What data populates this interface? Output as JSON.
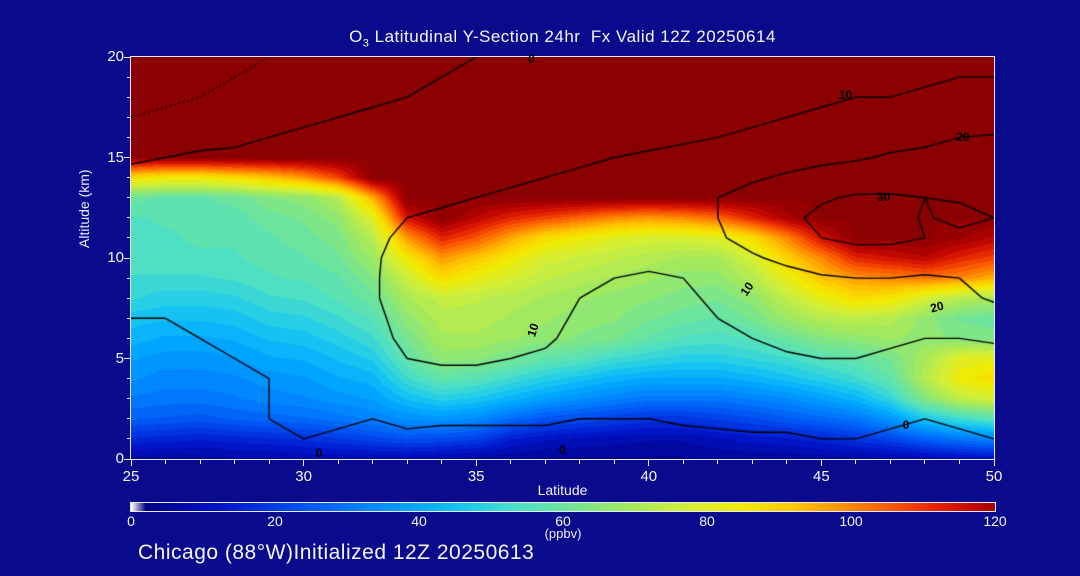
{
  "title": {
    "prefix": "O",
    "subscript": "3",
    "rest": " Latitudinal Y-Section 24hr  Fx Valid 12Z 20250614"
  },
  "footer": "Chicago (88°W)Initialized 12Z 20250613",
  "axes": {
    "x": {
      "label": "Latitude",
      "min": 25,
      "max": 50,
      "major_ticks": [
        25,
        30,
        35,
        40,
        45,
        50
      ],
      "minor_step": 1
    },
    "y": {
      "label": "Altitude (km)",
      "min": 0,
      "max": 20,
      "major_ticks": [
        0,
        5,
        10,
        15,
        20
      ],
      "minor_step": 1
    }
  },
  "colorbar": {
    "min": 0,
    "max": 120,
    "ticks": [
      0,
      20,
      40,
      60,
      80,
      100,
      120
    ],
    "units": "(ppbv)"
  },
  "colors": {
    "background": "#0a0a8c",
    "text": "#f5f5f5",
    "frame": "#e9e9f2",
    "contour": "#000000"
  },
  "chart_data": {
    "type": "heatmap",
    "title": "O3 Latitudinal Y-Section 24hr Fx Valid 12Z 20250614",
    "xlabel": "Latitude",
    "ylabel": "Altitude (km)",
    "units": "ppbv",
    "x_range": [
      25,
      50
    ],
    "y_range": [
      0,
      20
    ],
    "x_step": 1,
    "y_step": 1,
    "fill_quantize_step": 3,
    "colormap": [
      [
        0,
        "#ffffff"
      ],
      [
        2,
        "#000086"
      ],
      [
        12,
        "#0014c8"
      ],
      [
        22,
        "#004af0"
      ],
      [
        32,
        "#0082ff"
      ],
      [
        40,
        "#00aaff"
      ],
      [
        47,
        "#1fccec"
      ],
      [
        54,
        "#4fe0c4"
      ],
      [
        61,
        "#72e596"
      ],
      [
        69,
        "#a2e95e"
      ],
      [
        77,
        "#d2ef38"
      ],
      [
        85,
        "#f2ea00"
      ],
      [
        92,
        "#ffc800"
      ],
      [
        99,
        "#ff9000"
      ],
      [
        106,
        "#fa5400"
      ],
      [
        112,
        "#e32000"
      ],
      [
        118,
        "#ba0300"
      ],
      [
        122,
        "#9c0000"
      ],
      [
        125,
        "#8b0000"
      ]
    ],
    "fill_grid": [
      [
        6,
        6,
        6,
        7,
        7,
        8,
        8,
        8,
        8,
        7,
        6,
        5,
        4,
        4,
        4,
        4,
        4,
        5,
        5,
        5,
        6,
        6,
        7,
        8,
        9,
        10
      ],
      [
        16,
        15,
        14,
        15,
        16,
        17,
        19,
        21,
        23,
        22,
        20,
        14,
        11,
        10,
        9,
        8,
        8,
        10,
        12,
        13,
        15,
        18,
        21,
        26,
        30,
        33
      ],
      [
        26,
        25,
        24,
        26,
        27,
        28,
        30,
        32,
        35,
        36,
        34,
        28,
        24,
        22,
        20,
        18,
        18,
        20,
        22,
        25,
        27,
        30,
        36,
        46,
        52,
        56
      ],
      [
        31,
        30,
        30,
        31,
        33,
        34,
        36,
        38,
        44,
        48,
        46,
        42,
        38,
        35,
        32,
        30,
        30,
        30,
        32,
        34,
        38,
        42,
        50,
        64,
        74,
        78
      ],
      [
        35,
        33,
        33,
        34,
        36,
        37,
        40,
        42,
        52,
        58,
        56,
        52,
        48,
        45,
        42,
        40,
        40,
        40,
        42,
        45,
        48,
        52,
        58,
        72,
        84,
        88
      ],
      [
        38,
        36,
        36,
        37,
        40,
        41,
        44,
        47,
        58,
        66,
        65,
        62,
        58,
        56,
        52,
        50,
        48,
        48,
        50,
        52,
        56,
        58,
        62,
        70,
        80,
        82
      ],
      [
        42,
        40,
        40,
        41,
        44,
        45,
        48,
        52,
        62,
        70,
        70,
        68,
        66,
        64,
        62,
        58,
        55,
        54,
        56,
        60,
        64,
        66,
        68,
        66,
        64,
        63
      ],
      [
        45,
        44,
        44,
        45,
        48,
        49,
        52,
        56,
        66,
        72,
        72,
        70,
        68,
        66,
        65,
        62,
        60,
        58,
        62,
        68,
        72,
        74,
        72,
        66,
        61,
        60
      ],
      [
        50,
        48,
        48,
        49,
        52,
        53,
        56,
        60,
        70,
        75,
        74,
        72,
        70,
        68,
        66,
        65,
        63,
        62,
        66,
        74,
        82,
        88,
        86,
        78,
        72,
        70
      ],
      [
        52,
        52,
        52,
        53,
        55,
        56,
        58,
        64,
        76,
        88,
        82,
        78,
        74,
        72,
        70,
        68,
        66,
        66,
        72,
        82,
        92,
        98,
        100,
        102,
        100,
        95
      ],
      [
        55,
        55,
        55,
        55,
        57,
        58,
        61,
        68,
        85,
        98,
        92,
        85,
        78,
        76,
        74,
        72,
        70,
        70,
        78,
        90,
        100,
        112,
        115,
        118,
        112,
        108
      ],
      [
        55,
        55,
        56,
        56,
        58,
        60,
        63,
        72,
        98,
        112,
        106,
        96,
        88,
        84,
        80,
        78,
        78,
        80,
        88,
        100,
        115,
        125,
        125,
        125,
        122,
        118
      ],
      [
        55,
        56,
        56,
        57,
        60,
        62,
        66,
        80,
        115,
        125,
        118,
        112,
        108,
        104,
        100,
        98,
        100,
        104,
        112,
        120,
        125,
        125,
        125,
        125,
        125,
        125
      ],
      [
        60,
        58,
        58,
        60,
        64,
        66,
        72,
        95,
        125,
        125,
        125,
        125,
        125,
        125,
        125,
        125,
        125,
        125,
        125,
        125,
        125,
        125,
        125,
        125,
        125,
        125
      ],
      [
        88,
        85,
        85,
        88,
        92,
        98,
        108,
        125,
        125,
        125,
        125,
        125,
        125,
        125,
        125,
        125,
        125,
        125,
        125,
        125,
        125,
        125,
        125,
        125,
        125,
        125
      ],
      [
        125,
        125,
        125,
        125,
        125,
        125,
        125,
        125,
        125,
        125,
        125,
        125,
        125,
        125,
        125,
        125,
        125,
        125,
        125,
        125,
        125,
        125,
        125,
        125,
        125,
        125
      ],
      [
        125,
        125,
        125,
        125,
        125,
        125,
        125,
        125,
        125,
        125,
        125,
        125,
        125,
        125,
        125,
        125,
        125,
        125,
        125,
        125,
        125,
        125,
        125,
        125,
        125,
        125
      ],
      [
        125,
        125,
        125,
        125,
        125,
        125,
        125,
        125,
        125,
        125,
        125,
        125,
        125,
        125,
        125,
        125,
        125,
        125,
        125,
        125,
        125,
        125,
        125,
        125,
        125,
        125
      ],
      [
        125,
        125,
        125,
        125,
        125,
        125,
        125,
        125,
        125,
        125,
        125,
        125,
        125,
        125,
        125,
        125,
        125,
        125,
        125,
        125,
        125,
        125,
        125,
        125,
        125,
        125
      ],
      [
        125,
        125,
        125,
        125,
        125,
        125,
        125,
        125,
        125,
        125,
        125,
        125,
        125,
        125,
        125,
        125,
        125,
        125,
        125,
        125,
        125,
        125,
        125,
        125,
        125,
        125
      ],
      [
        125,
        125,
        125,
        125,
        125,
        125,
        125,
        125,
        125,
        125,
        125,
        125,
        125,
        125,
        125,
        125,
        125,
        125,
        125,
        125,
        125,
        125,
        125,
        125,
        125,
        125
      ]
    ],
    "contour_levels_solid": [
      0,
      10,
      20,
      30
    ],
    "contour_levels_dotted": [
      -5
    ],
    "contour_grid": [
      [
        -3,
        -3,
        -3,
        -2,
        -2,
        -2,
        -2,
        -2,
        -3,
        -5,
        -5,
        -5,
        -5,
        -5,
        -5,
        -5,
        -5,
        -4,
        -4,
        -3,
        -2,
        -2,
        -3,
        -4,
        -3,
        -2
      ],
      [
        -2,
        -2,
        -2,
        -1,
        -1,
        0,
        -1,
        -1,
        -1,
        -2,
        -2,
        -2,
        -2,
        -2,
        -2,
        -2,
        -2,
        -1,
        -1,
        -1,
        0,
        0,
        -1,
        -2,
        -1,
        0
      ],
      [
        -2,
        -2,
        -1,
        -1,
        0,
        1,
        1,
        0,
        1,
        1,
        1,
        1,
        1,
        0,
        0,
        0,
        1,
        1,
        2,
        2,
        2,
        2,
        1,
        0,
        1,
        2
      ],
      [
        -3,
        -2,
        -2,
        -1,
        0,
        1,
        1,
        1,
        3,
        4,
        4,
        3,
        2,
        1,
        1,
        1,
        1,
        2,
        3,
        3,
        4,
        4,
        3,
        2,
        2,
        3
      ],
      [
        -2,
        -2,
        -1,
        -1,
        0,
        1,
        2,
        3,
        7,
        8,
        8,
        7,
        6,
        4,
        3,
        3,
        3,
        4,
        5,
        6,
        7,
        7,
        6,
        5,
        5,
        5
      ],
      [
        -2,
        -1,
        -1,
        0,
        1,
        2,
        3,
        5,
        10,
        11,
        11,
        10,
        9,
        7,
        5,
        4,
        5,
        6,
        8,
        9,
        10,
        10,
        9,
        8,
        7,
        7
      ],
      [
        -1,
        -1,
        0,
        0,
        1,
        2,
        4,
        7,
        12,
        13,
        13,
        12,
        11,
        8,
        6,
        5,
        6,
        8,
        10,
        12,
        13,
        12,
        11,
        10,
        10,
        11
      ],
      [
        0,
        0,
        0,
        1,
        2,
        3,
        5,
        8,
        13,
        14,
        14,
        13,
        12,
        9,
        7,
        6,
        8,
        10,
        12,
        14,
        15,
        14,
        13,
        13,
        14,
        16
      ],
      [
        0,
        1,
        1,
        2,
        3,
        4,
        6,
        9,
        14,
        15,
        15,
        14,
        12,
        10,
        8,
        7,
        9,
        11,
        14,
        16,
        17,
        17,
        16,
        16,
        18,
        21
      ],
      [
        1,
        1,
        2,
        2,
        3,
        4,
        6,
        9,
        14,
        15,
        15,
        14,
        13,
        11,
        10,
        9,
        10,
        12,
        15,
        17,
        19,
        20,
        20,
        19,
        20,
        22
      ],
      [
        2,
        2,
        3,
        3,
        4,
        5,
        6,
        9,
        13,
        14,
        14,
        14,
        13,
        12,
        12,
        12,
        13,
        16,
        19,
        22,
        25,
        26,
        26,
        25,
        23,
        22
      ],
      [
        3,
        3,
        4,
        4,
        5,
        6,
        7,
        9,
        11,
        12,
        12,
        13,
        13,
        13,
        13,
        14,
        16,
        19,
        23,
        27,
        30,
        32,
        32,
        30,
        27,
        26
      ],
      [
        4,
        5,
        5,
        6,
        6,
        7,
        8,
        9,
        10,
        11,
        11,
        12,
        13,
        13,
        14,
        15,
        17,
        20,
        24,
        28,
        32,
        35,
        34,
        29,
        33,
        30
      ],
      [
        4,
        4,
        4,
        5,
        5,
        6,
        6,
        7,
        8,
        9,
        10,
        11,
        12,
        13,
        14,
        15,
        17,
        20,
        23,
        26,
        29,
        31,
        31,
        30,
        29,
        29
      ],
      [
        2,
        2,
        3,
        3,
        4,
        4,
        5,
        5,
        6,
        7,
        8,
        9,
        10,
        11,
        12,
        13,
        15,
        17,
        19,
        21,
        23,
        25,
        26,
        26,
        25,
        25
      ],
      [
        -1,
        0,
        1,
        1,
        2,
        2,
        3,
        4,
        4,
        5,
        6,
        7,
        8,
        9,
        10,
        11,
        12,
        14,
        15,
        17,
        18,
        19,
        21,
        22,
        23,
        23
      ],
      [
        -3,
        -2,
        -2,
        -1,
        0,
        1,
        1,
        2,
        3,
        3,
        4,
        5,
        6,
        6,
        7,
        8,
        9,
        10,
        11,
        12,
        13,
        15,
        17,
        18,
        20,
        21
      ],
      [
        -5,
        -4,
        -3,
        -2,
        -2,
        -1,
        0,
        1,
        1,
        2,
        3,
        3,
        4,
        5,
        5,
        6,
        7,
        8,
        9,
        10,
        11,
        12,
        12,
        13,
        13,
        14
      ],
      [
        -6,
        -6,
        -5,
        -4,
        -3,
        -2,
        -1,
        -1,
        0,
        1,
        1,
        2,
        3,
        3,
        4,
        5,
        6,
        7,
        7,
        8,
        9,
        10,
        10,
        11,
        11,
        12
      ],
      [
        -7,
        -7,
        -6,
        -5,
        -4,
        -3,
        -2,
        -1,
        -1,
        0,
        0,
        1,
        2,
        2,
        3,
        4,
        5,
        6,
        6,
        7,
        8,
        8,
        9,
        9,
        10,
        10
      ],
      [
        -8,
        -7,
        -7,
        -6,
        -5,
        -4,
        -3,
        -2,
        -1,
        -1,
        0,
        0,
        1,
        2,
        2,
        3,
        4,
        5,
        6,
        6,
        7,
        7,
        8,
        8,
        9,
        9
      ]
    ],
    "contour_labels": [
      {
        "text": "0",
        "lat": 36.6,
        "alt": 19.9,
        "rot": 0
      },
      {
        "text": "10",
        "lat": 45.7,
        "alt": 18.1,
        "rot": 0
      },
      {
        "text": "20",
        "lat": 49.1,
        "alt": 16.0,
        "rot": 0
      },
      {
        "text": "30",
        "lat": 46.8,
        "alt": 13.05,
        "rot": 0
      },
      {
        "text": "10",
        "lat": 36.65,
        "alt": 6.4,
        "rot": -72
      },
      {
        "text": "10",
        "lat": 42.85,
        "alt": 8.45,
        "rot": -55
      },
      {
        "text": "20",
        "lat": 48.35,
        "alt": 7.55,
        "rot": -15
      },
      {
        "text": "0",
        "lat": 47.45,
        "alt": 1.7,
        "rot": 0
      },
      {
        "text": "0",
        "lat": 37.5,
        "alt": 0.45,
        "rot": 0
      },
      {
        "text": "0",
        "lat": 30.45,
        "alt": 0.3,
        "rot": 0
      }
    ]
  }
}
